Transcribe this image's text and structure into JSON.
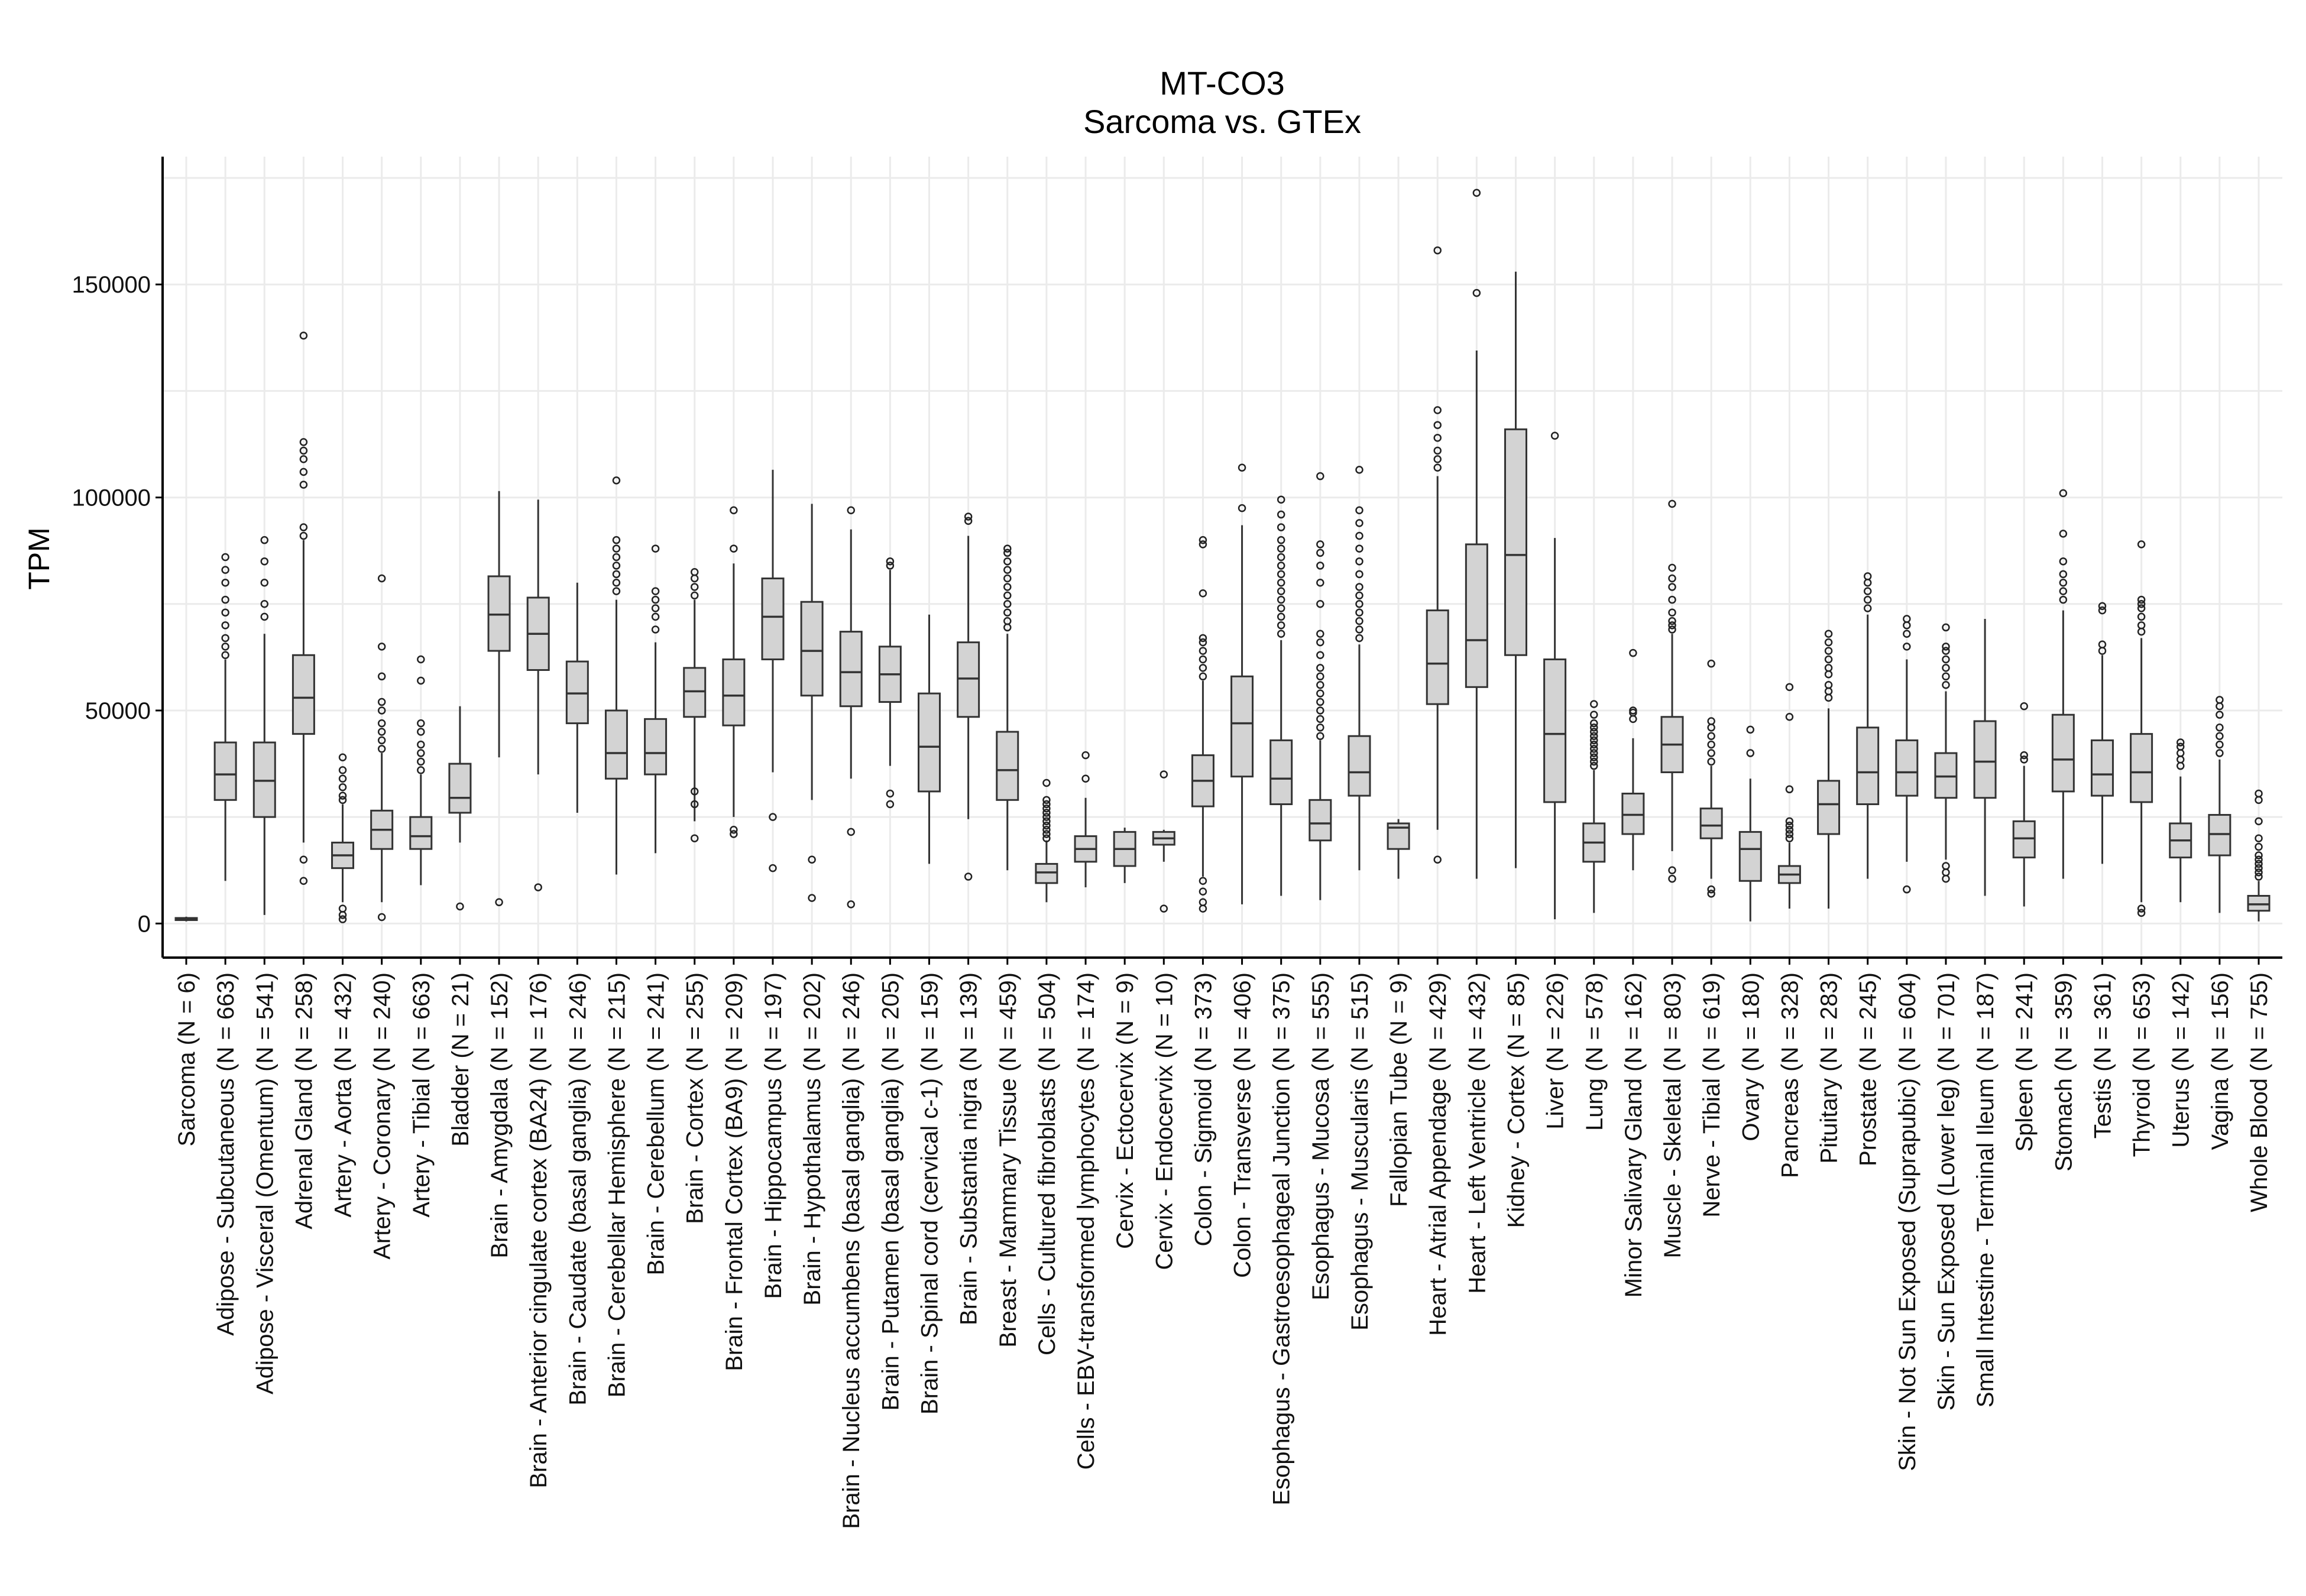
{
  "chart_data": {
    "type": "boxplot",
    "title": "MT-CO3",
    "subtitle": "Sarcoma vs. GTEx",
    "xlabel": "",
    "ylabel": "TPM",
    "ylim": [
      -8000,
      180000
    ],
    "yticks": [
      0,
      50000,
      100000,
      150000
    ],
    "ytick_labels": [
      "0",
      "50000",
      "100000",
      "150000"
    ],
    "grid": true,
    "legend": "none",
    "colors": {
      "box_fill": "#d3d3d3",
      "box_stroke": "#333333",
      "grid": "#ebebeb"
    },
    "categories": [
      "Sarcoma (N = 6)",
      "Adipose - Subcutaneous (N = 663)",
      "Adipose - Visceral (Omentum) (N = 541)",
      "Adrenal Gland (N = 258)",
      "Artery - Aorta (N = 432)",
      "Artery - Coronary (N = 240)",
      "Artery - Tibial (N = 663)",
      "Bladder (N = 21)",
      "Brain - Amygdala (N = 152)",
      "Brain - Anterior cingulate cortex (BA24) (N = 176)",
      "Brain - Caudate (basal ganglia) (N = 246)",
      "Brain - Cerebellar Hemisphere (N = 215)",
      "Brain - Cerebellum (N = 241)",
      "Brain - Cortex (N = 255)",
      "Brain - Frontal Cortex (BA9) (N = 209)",
      "Brain - Hippocampus (N = 197)",
      "Brain - Hypothalamus (N = 202)",
      "Brain - Nucleus accumbens (basal ganglia) (N = 246)",
      "Brain - Putamen (basal ganglia) (N = 205)",
      "Brain - Spinal cord (cervical c-1) (N = 159)",
      "Brain - Substantia nigra (N = 139)",
      "Breast - Mammary Tissue (N = 459)",
      "Cells - Cultured fibroblasts (N = 504)",
      "Cells - EBV-transformed lymphocytes (N = 174)",
      "Cervix - Ectocervix (N = 9)",
      "Cervix - Endocervix (N = 10)",
      "Colon - Sigmoid (N = 373)",
      "Colon - Transverse (N = 406)",
      "Esophagus - Gastroesophageal Junction (N = 375)",
      "Esophagus - Mucosa (N = 555)",
      "Esophagus - Muscularis (N = 515)",
      "Fallopian Tube (N = 9)",
      "Heart - Atrial Appendage (N = 429)",
      "Heart - Left Ventricle (N = 432)",
      "Kidney - Cortex (N = 85)",
      "Liver (N = 226)",
      "Lung (N = 578)",
      "Minor Salivary Gland (N = 162)",
      "Muscle - Skeletal (N = 803)",
      "Nerve - Tibial (N = 619)",
      "Ovary (N = 180)",
      "Pancreas (N = 328)",
      "Pituitary (N = 283)",
      "Prostate (N = 245)",
      "Skin - Not Sun Exposed (Suprapubic) (N = 604)",
      "Skin - Sun Exposed (Lower leg) (N = 701)",
      "Small Intestine - Terminal Ileum (N = 187)",
      "Spleen (N = 241)",
      "Stomach (N = 359)",
      "Testis (N = 361)",
      "Thyroid (N = 653)",
      "Uterus (N = 142)",
      "Vagina (N = 156)",
      "Whole Blood (N = 755)"
    ],
    "boxes": [
      {
        "min": 500,
        "q1": 800,
        "median": 1000,
        "q3": 1300,
        "max": 1600,
        "outliers": []
      },
      {
        "min": 10000,
        "q1": 29000,
        "median": 35000,
        "q3": 42500,
        "max": 62000,
        "outliers": [
          63000,
          65000,
          67000,
          70000,
          73000,
          76000,
          80000,
          83000,
          86000
        ]
      },
      {
        "min": 2000,
        "q1": 25000,
        "median": 33500,
        "q3": 42500,
        "max": 68000,
        "outliers": [
          72000,
          75000,
          80000,
          85000,
          90000
        ]
      },
      {
        "min": 19000,
        "q1": 44500,
        "median": 53000,
        "q3": 63000,
        "max": 90000,
        "outliers": [
          10000,
          15000,
          91000,
          93000,
          103000,
          106000,
          109000,
          111000,
          113000,
          138000
        ]
      },
      {
        "min": 5000,
        "q1": 13000,
        "median": 16000,
        "q3": 19000,
        "max": 28000,
        "outliers": [
          1000,
          2000,
          3500,
          29000,
          30000,
          32000,
          34000,
          36000,
          39000
        ]
      },
      {
        "min": 5000,
        "q1": 17500,
        "median": 22000,
        "q3": 26500,
        "max": 40000,
        "outliers": [
          1500,
          41000,
          43000,
          45000,
          47000,
          50000,
          52000,
          58000,
          65000,
          81000
        ]
      },
      {
        "min": 9000,
        "q1": 17500,
        "median": 20500,
        "q3": 25000,
        "max": 35000,
        "outliers": [
          36000,
          38000,
          40000,
          42000,
          45000,
          47000,
          57000,
          62000
        ]
      },
      {
        "min": 19000,
        "q1": 26000,
        "median": 29500,
        "q3": 37500,
        "max": 51000,
        "outliers": [
          4000
        ]
      },
      {
        "min": 39000,
        "q1": 64000,
        "median": 72500,
        "q3": 81500,
        "max": 101500,
        "outliers": [
          5000
        ]
      },
      {
        "min": 35000,
        "q1": 59500,
        "median": 68000,
        "q3": 76500,
        "max": 99500,
        "outliers": [
          8500
        ]
      },
      {
        "min": 26000,
        "q1": 47000,
        "median": 54000,
        "q3": 61500,
        "max": 80000,
        "outliers": []
      },
      {
        "min": 11500,
        "q1": 34000,
        "median": 40000,
        "q3": 50000,
        "max": 76000,
        "outliers": [
          78000,
          80000,
          82000,
          84000,
          86000,
          88000,
          90000,
          104000
        ]
      },
      {
        "min": 16500,
        "q1": 35000,
        "median": 40000,
        "q3": 48000,
        "max": 66000,
        "outliers": [
          69000,
          72000,
          74000,
          76000,
          78000,
          88000
        ]
      },
      {
        "min": 24000,
        "q1": 48500,
        "median": 54500,
        "q3": 60000,
        "max": 76000,
        "outliers": [
          20000,
          28000,
          31000,
          77000,
          79000,
          81000,
          82500
        ]
      },
      {
        "min": 25000,
        "q1": 46500,
        "median": 53500,
        "q3": 62000,
        "max": 84500,
        "outliers": [
          21000,
          22000,
          88000,
          97000
        ]
      },
      {
        "min": 35500,
        "q1": 62000,
        "median": 72000,
        "q3": 81000,
        "max": 106500,
        "outliers": [
          13000,
          25000
        ]
      },
      {
        "min": 29000,
        "q1": 53500,
        "median": 64000,
        "q3": 75500,
        "max": 98500,
        "outliers": [
          6000,
          15000
        ]
      },
      {
        "min": 34000,
        "q1": 51000,
        "median": 59000,
        "q3": 68500,
        "max": 92500,
        "outliers": [
          4500,
          21500,
          97000
        ]
      },
      {
        "min": 37000,
        "q1": 52000,
        "median": 58500,
        "q3": 65000,
        "max": 83000,
        "outliers": [
          28000,
          30500,
          84000,
          85000
        ]
      },
      {
        "min": 14000,
        "q1": 31000,
        "median": 41500,
        "q3": 54000,
        "max": 72500,
        "outliers": []
      },
      {
        "min": 24500,
        "q1": 48500,
        "median": 57500,
        "q3": 66000,
        "max": 91000,
        "outliers": [
          11000,
          94500,
          95500
        ]
      },
      {
        "min": 12500,
        "q1": 29000,
        "median": 36000,
        "q3": 45000,
        "max": 68000,
        "outliers": [
          69500,
          71000,
          73000,
          75000,
          77000,
          79000,
          81000,
          83000,
          85000,
          87000,
          88000
        ]
      },
      {
        "min": 5000,
        "q1": 9500,
        "median": 12000,
        "q3": 14000,
        "max": 19500,
        "outliers": [
          20000,
          21000,
          22000,
          23000,
          24000,
          25000,
          26000,
          27000,
          28000,
          29000,
          33000
        ]
      },
      {
        "min": 8500,
        "q1": 14500,
        "median": 17500,
        "q3": 20500,
        "max": 29500,
        "outliers": [
          34000,
          39500
        ]
      },
      {
        "min": 9500,
        "q1": 13500,
        "median": 17500,
        "q3": 21500,
        "max": 22500,
        "outliers": []
      },
      {
        "min": 14500,
        "q1": 18500,
        "median": 20000,
        "q3": 21500,
        "max": 22000,
        "outliers": [
          3500,
          35000
        ]
      },
      {
        "min": 11000,
        "q1": 27500,
        "median": 33500,
        "q3": 39500,
        "max": 57000,
        "outliers": [
          3500,
          5000,
          7500,
          10000,
          58000,
          60000,
          62000,
          64000,
          66000,
          67000,
          77500,
          89000,
          90000
        ]
      },
      {
        "min": 4500,
        "q1": 34500,
        "median": 47000,
        "q3": 58000,
        "max": 93500,
        "outliers": [
          97500,
          107000
        ]
      },
      {
        "min": 6500,
        "q1": 28000,
        "median": 34000,
        "q3": 43000,
        "max": 66500,
        "outliers": [
          68000,
          70000,
          72000,
          74000,
          76000,
          78000,
          80000,
          82000,
          84000,
          86000,
          88000,
          90000,
          93000,
          96000,
          99500
        ]
      },
      {
        "min": 5500,
        "q1": 19500,
        "median": 23500,
        "q3": 29000,
        "max": 43000,
        "outliers": [
          44000,
          46000,
          48000,
          50000,
          52000,
          54000,
          56000,
          58000,
          60000,
          63000,
          66000,
          68000,
          75000,
          80000,
          84000,
          87000,
          89000,
          105000
        ]
      },
      {
        "min": 12500,
        "q1": 30000,
        "median": 35500,
        "q3": 44000,
        "max": 65500,
        "outliers": [
          67000,
          69000,
          71000,
          73000,
          75000,
          77000,
          79000,
          82000,
          85000,
          88000,
          91000,
          94000,
          97000,
          106500
        ]
      },
      {
        "min": 10500,
        "q1": 17500,
        "median": 22500,
        "q3": 23500,
        "max": 24500,
        "outliers": []
      },
      {
        "min": 22000,
        "q1": 51500,
        "median": 61000,
        "q3": 73500,
        "max": 105000,
        "outliers": [
          15000,
          107000,
          109000,
          111000,
          114000,
          117000,
          120500,
          158000
        ]
      },
      {
        "min": 10500,
        "q1": 55500,
        "median": 66500,
        "q3": 89000,
        "max": 134500,
        "outliers": [
          148000,
          171500
        ]
      },
      {
        "min": 13000,
        "q1": 63000,
        "median": 86500,
        "q3": 116000,
        "max": 153000,
        "outliers": []
      },
      {
        "min": 1000,
        "q1": 28500,
        "median": 44500,
        "q3": 62000,
        "max": 90500,
        "outliers": [
          114500
        ]
      },
      {
        "min": 2500,
        "q1": 14500,
        "median": 19000,
        "q3": 23500,
        "max": 36000,
        "outliers": [
          37000,
          38000,
          39000,
          40000,
          41000,
          42000,
          43000,
          44000,
          45000,
          46000,
          47000,
          49000,
          51500
        ]
      },
      {
        "min": 12500,
        "q1": 21000,
        "median": 25500,
        "q3": 30500,
        "max": 43500,
        "outliers": [
          48000,
          49500,
          50000,
          63500
        ]
      },
      {
        "min": 17000,
        "q1": 35500,
        "median": 42000,
        "q3": 48500,
        "max": 68000,
        "outliers": [
          10500,
          12500,
          69000,
          70000,
          71000,
          73000,
          76000,
          79000,
          81000,
          83500,
          98500
        ]
      },
      {
        "min": 10500,
        "q1": 20000,
        "median": 23000,
        "q3": 27000,
        "max": 37000,
        "outliers": [
          7000,
          8000,
          38000,
          40000,
          42000,
          44000,
          46000,
          47500,
          61000
        ]
      },
      {
        "min": 500,
        "q1": 10000,
        "median": 17500,
        "q3": 21500,
        "max": 34000,
        "outliers": [
          40000,
          45500
        ]
      },
      {
        "min": 3500,
        "q1": 9500,
        "median": 11500,
        "q3": 13500,
        "max": 19000,
        "outliers": [
          20000,
          21000,
          22000,
          23000,
          24000,
          31500,
          48500,
          55500
        ]
      },
      {
        "min": 3500,
        "q1": 21000,
        "median": 28000,
        "q3": 33500,
        "max": 50500,
        "outliers": [
          53000,
          54500,
          56000,
          58500,
          60000,
          62000,
          64000,
          66000,
          68000
        ]
      },
      {
        "min": 10500,
        "q1": 28000,
        "median": 35500,
        "q3": 46000,
        "max": 72500,
        "outliers": [
          74000,
          76000,
          78000,
          80000,
          81500
        ]
      },
      {
        "min": 14500,
        "q1": 30000,
        "median": 35500,
        "q3": 43000,
        "max": 62000,
        "outliers": [
          8000,
          65000,
          68000,
          70000,
          71500
        ]
      },
      {
        "min": 15000,
        "q1": 29500,
        "median": 34500,
        "q3": 40000,
        "max": 54500,
        "outliers": [
          10500,
          12000,
          13500,
          56000,
          58000,
          60000,
          62000,
          64000,
          65000,
          69500
        ]
      },
      {
        "min": 6500,
        "q1": 29500,
        "median": 38000,
        "q3": 47500,
        "max": 71500,
        "outliers": []
      },
      {
        "min": 4000,
        "q1": 15500,
        "median": 20000,
        "q3": 24000,
        "max": 37000,
        "outliers": [
          38500,
          39500,
          51000
        ]
      },
      {
        "min": 10500,
        "q1": 31000,
        "median": 38500,
        "q3": 49000,
        "max": 73500,
        "outliers": [
          76000,
          78000,
          80000,
          82000,
          85000,
          91500,
          101000
        ]
      },
      {
        "min": 14000,
        "q1": 30000,
        "median": 35000,
        "q3": 43000,
        "max": 63000,
        "outliers": [
          64000,
          65500,
          73500,
          74500
        ]
      },
      {
        "min": 5000,
        "q1": 28500,
        "median": 35500,
        "q3": 44500,
        "max": 67000,
        "outliers": [
          2500,
          3500,
          68500,
          70000,
          72000,
          74000,
          75000,
          76000,
          89000
        ]
      },
      {
        "min": 5000,
        "q1": 15500,
        "median": 19500,
        "q3": 23500,
        "max": 34500,
        "outliers": [
          37000,
          38500,
          40000,
          41500,
          42500
        ]
      },
      {
        "min": 2500,
        "q1": 16000,
        "median": 21000,
        "q3": 25500,
        "max": 38500,
        "outliers": [
          40000,
          42000,
          44000,
          46000,
          49000,
          51000,
          52500
        ]
      },
      {
        "min": 500,
        "q1": 3000,
        "median": 4500,
        "q3": 6500,
        "max": 10000,
        "outliers": [
          11000,
          12000,
          13000,
          14000,
          15000,
          16000,
          18000,
          20000,
          24000,
          29000,
          30500
        ]
      }
    ]
  }
}
